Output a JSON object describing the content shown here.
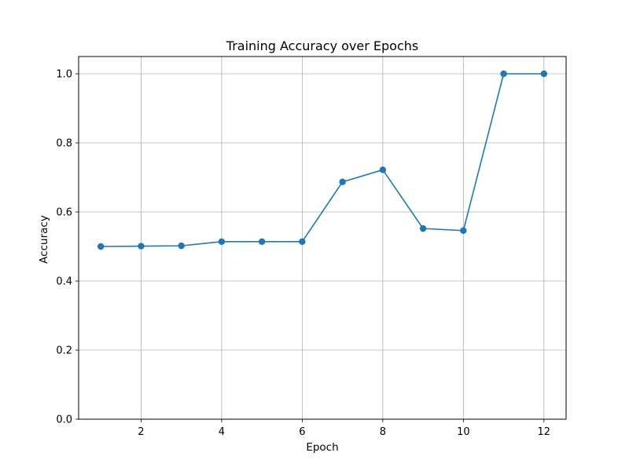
{
  "chart_data": {
    "type": "line",
    "title": "Training Accuracy over Epochs",
    "xlabel": "Epoch",
    "ylabel": "Accuracy",
    "x": [
      1,
      2,
      3,
      4,
      5,
      6,
      7,
      8,
      9,
      10,
      11,
      12
    ],
    "series": [
      {
        "values": [
          0.5,
          0.501,
          0.502,
          0.514,
          0.514,
          0.514,
          0.687,
          0.722,
          0.552,
          0.546,
          1.0,
          1.0
        ],
        "color": "#1f77b4",
        "marker": "circle"
      }
    ],
    "xlim": [
      0.45,
      12.55
    ],
    "ylim": [
      0.0,
      1.05
    ],
    "xticks": [
      2,
      4,
      6,
      8,
      10,
      12
    ],
    "yticks": [
      0.0,
      0.2,
      0.4,
      0.6,
      0.8,
      1.0
    ],
    "xtick_labels": [
      "2",
      "4",
      "6",
      "8",
      "10",
      "12"
    ],
    "ytick_labels": [
      "0.0",
      "0.2",
      "0.4",
      "0.6",
      "0.8",
      "1.0"
    ],
    "grid": true,
    "grid_color": "#b0b0b0",
    "axes_color": "#000000"
  }
}
